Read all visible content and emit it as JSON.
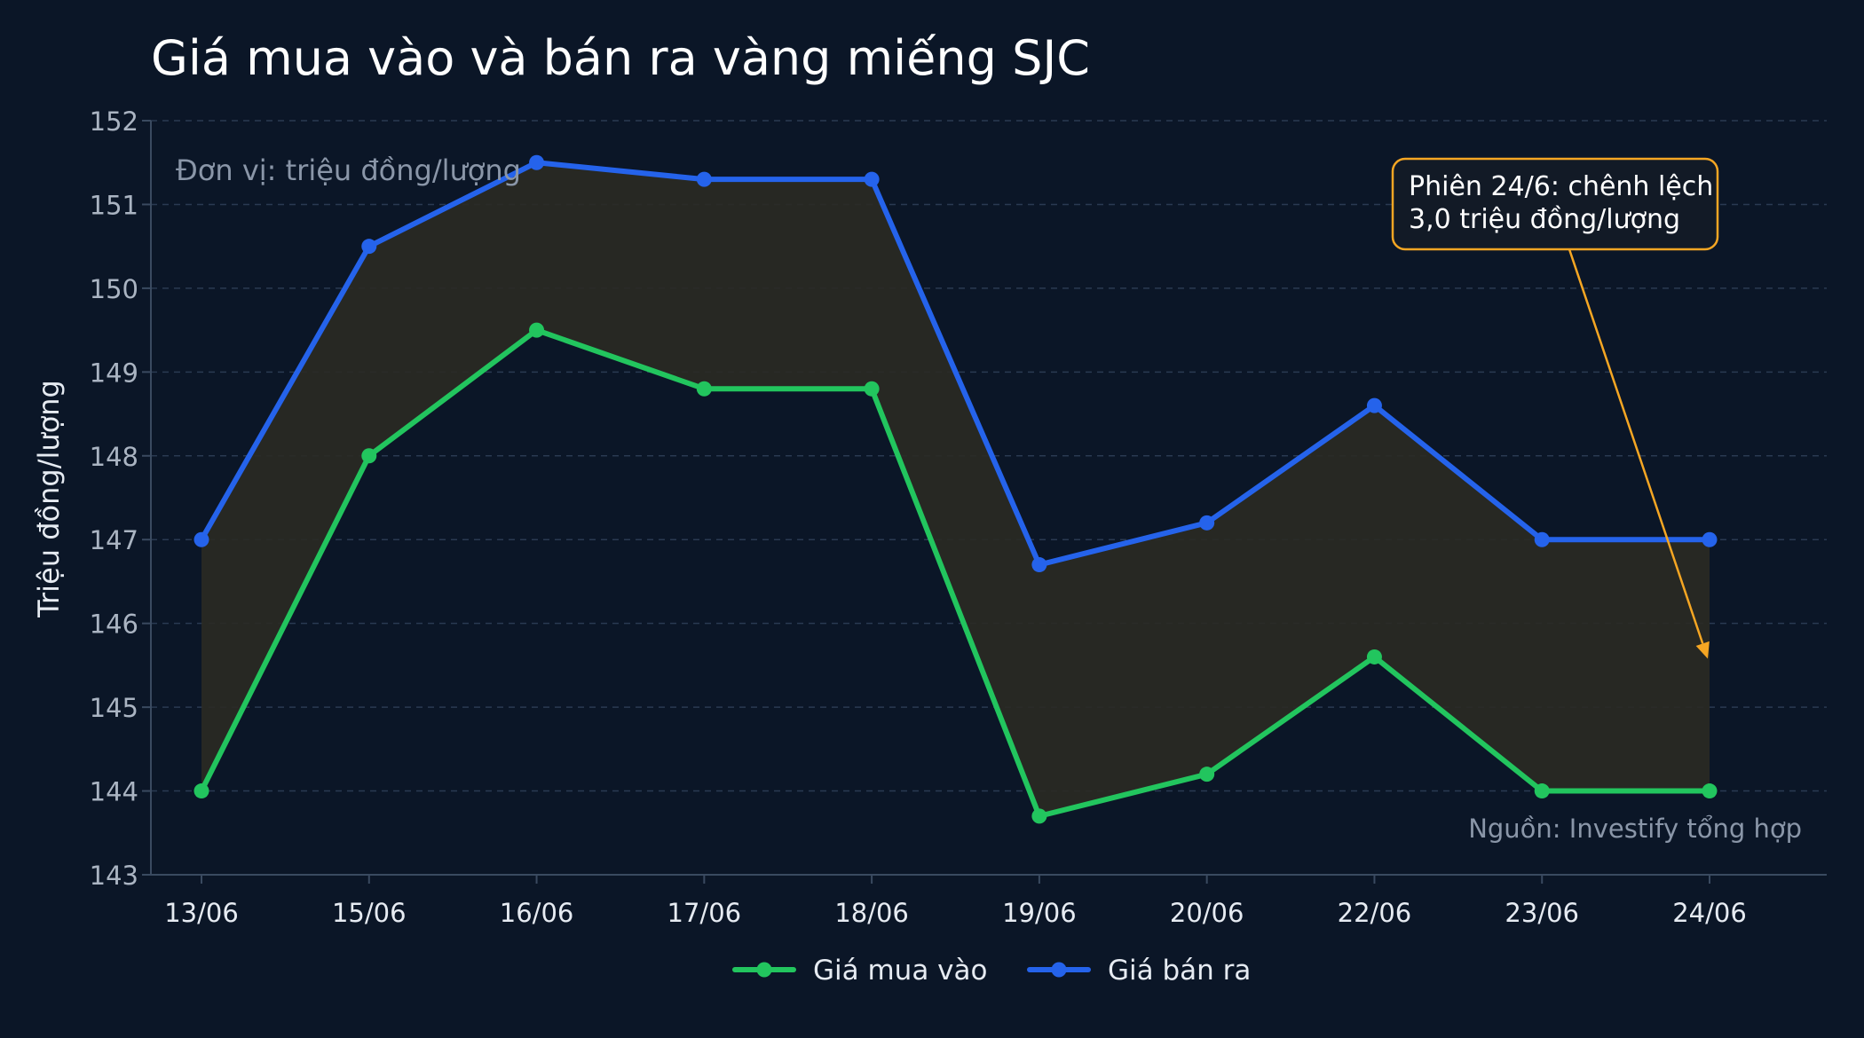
{
  "colors": {
    "background": "#0b1627",
    "grid": "#2a3a52",
    "axis": "#3a4a60",
    "tick_text": "#aab4c2",
    "title_text": "#ffffff",
    "label_text": "#e6ebf2",
    "muted_text": "#8a96a8",
    "band_fill": "#2a2a24",
    "annotation": "#f5a623"
  },
  "chart_data": {
    "type": "line",
    "title": "Giá mua vào và bán ra vàng miếng SJC",
    "ylabel": "Triệu đồng/lượng",
    "xlabel": "",
    "unit_note": "Đơn vị: triệu đồng/lượng",
    "source": "Nguồn: Investify tổng hợp",
    "categories": [
      "13/06",
      "15/06",
      "16/06",
      "17/06",
      "18/06",
      "19/06",
      "20/06",
      "22/06",
      "23/06",
      "24/06"
    ],
    "ylim": [
      143,
      152
    ],
    "yticks": [
      143,
      144,
      145,
      146,
      147,
      148,
      149,
      150,
      151,
      152
    ],
    "grid": true,
    "legend_position": "bottom-center",
    "series": [
      {
        "name": "Giá mua vào",
        "color": "#22c55e",
        "values": [
          144.0,
          148.0,
          149.5,
          148.8,
          148.8,
          143.7,
          144.2,
          145.6,
          144.0,
          144.0
        ]
      },
      {
        "name": "Giá bán ra",
        "color": "#2563eb",
        "values": [
          147.0,
          150.5,
          151.5,
          151.3,
          151.3,
          146.7,
          147.2,
          148.6,
          147.0,
          147.0
        ]
      }
    ],
    "annotation": {
      "lines": [
        "Phiên 24/6: chênh lệch",
        "3,0 triệu đồng/lượng"
      ],
      "target_category": "24/06",
      "target_value": 145.6
    }
  }
}
